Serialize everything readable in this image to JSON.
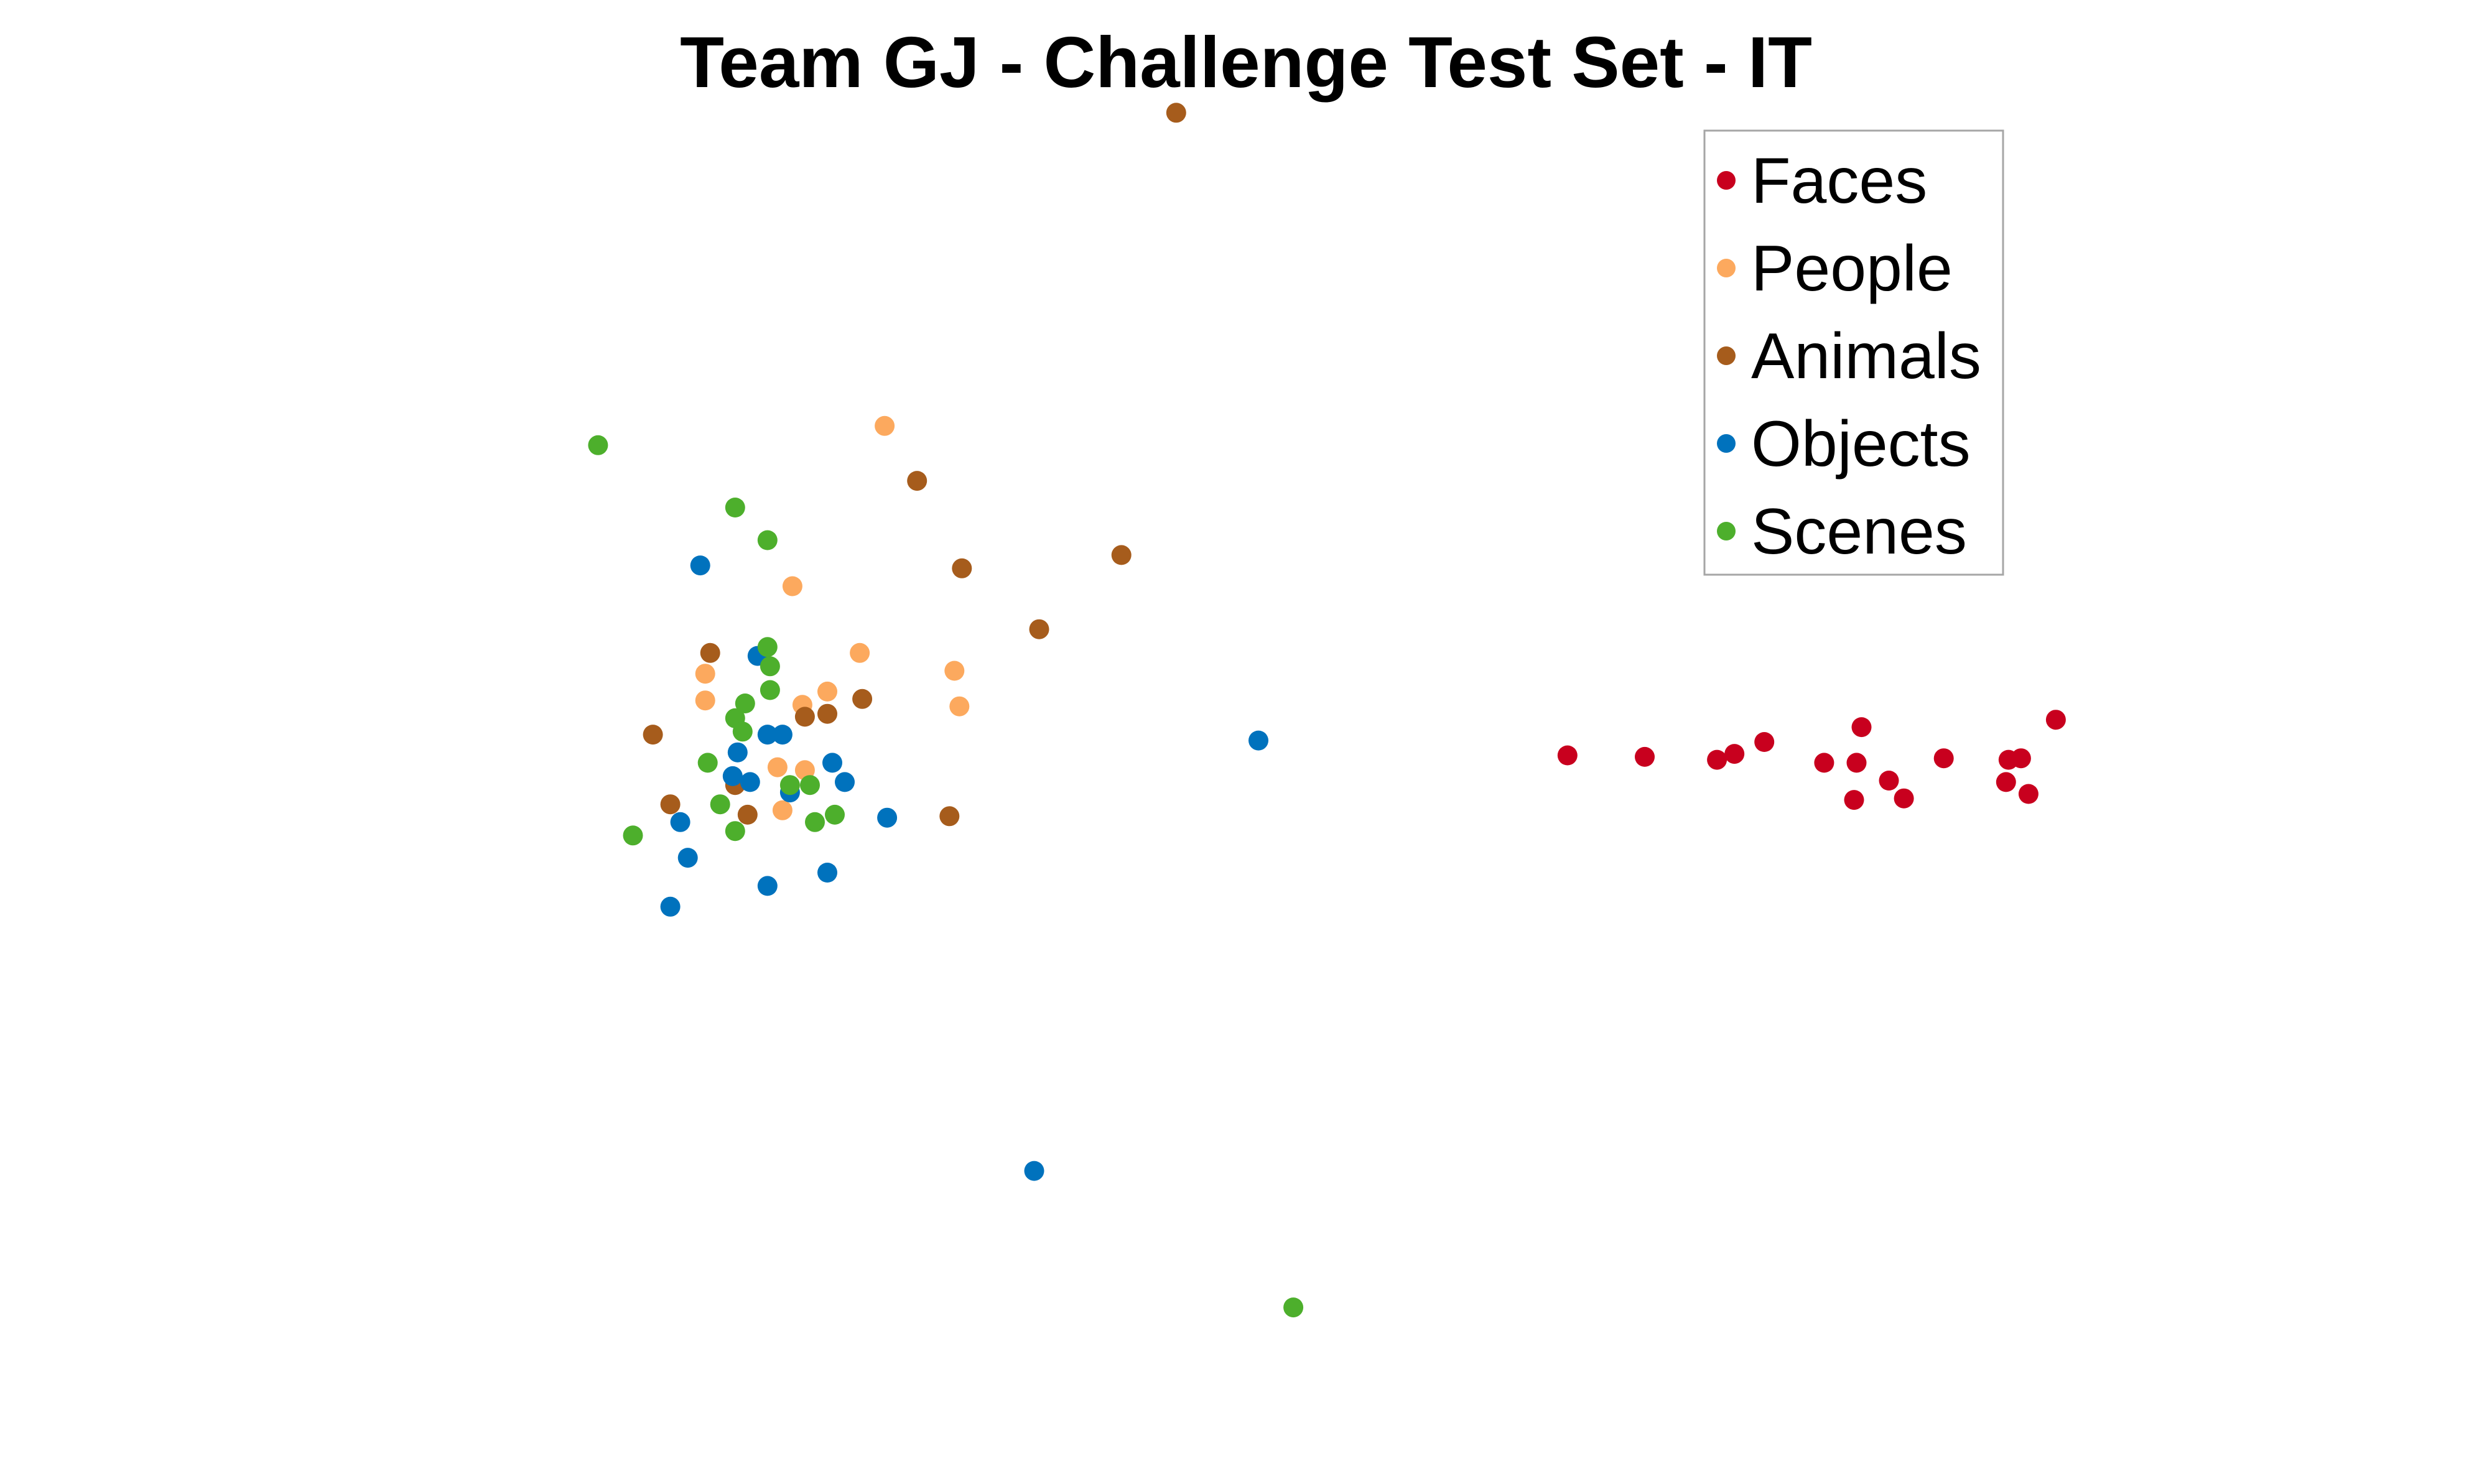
{
  "chart_data": {
    "type": "scatter",
    "title": "Team GJ  - Challenge Test Set - IT",
    "xlabel": "",
    "ylabel": "",
    "axes_visible": false,
    "grid": false,
    "xlim": [
      0,
      100
    ],
    "ylim": [
      0,
      100
    ],
    "legend": {
      "placement": "top-right",
      "boxed": true
    },
    "series": [
      {
        "name": "Faces",
        "color": "#C8001E",
        "points": [
          [
            82.5,
            51.5
          ],
          [
            81.4,
            46.5
          ],
          [
            78.0,
            48.9
          ],
          [
            74.7,
            51.0
          ],
          [
            74.5,
            48.6
          ],
          [
            73.2,
            48.6
          ],
          [
            74.4,
            46.1
          ],
          [
            75.8,
            47.4
          ],
          [
            76.4,
            46.2
          ],
          [
            80.5,
            47.3
          ],
          [
            81.1,
            48.9
          ],
          [
            80.6,
            48.8
          ],
          [
            70.8,
            50.0
          ],
          [
            69.6,
            49.2
          ],
          [
            68.9,
            48.8
          ],
          [
            66.0,
            49.0
          ],
          [
            62.9,
            49.1
          ]
        ]
      },
      {
        "name": "People",
        "color": "#FCA95E",
        "points": [
          [
            35.5,
            71.3
          ],
          [
            31.8,
            60.5
          ],
          [
            34.5,
            56.0
          ],
          [
            38.3,
            54.8
          ],
          [
            38.5,
            52.4
          ],
          [
            28.3,
            54.6
          ],
          [
            28.3,
            52.8
          ],
          [
            33.2,
            53.4
          ],
          [
            32.2,
            52.5
          ],
          [
            31.2,
            48.3
          ],
          [
            32.3,
            48.1
          ],
          [
            31.4,
            45.4
          ]
        ]
      },
      {
        "name": "Animals",
        "color": "#A65C1C",
        "points": [
          [
            47.2,
            92.4
          ],
          [
            36.8,
            67.6
          ],
          [
            38.6,
            61.7
          ],
          [
            45.0,
            62.6
          ],
          [
            41.7,
            57.6
          ],
          [
            28.5,
            56.0
          ],
          [
            34.6,
            52.9
          ],
          [
            33.2,
            51.9
          ],
          [
            32.3,
            51.7
          ],
          [
            26.2,
            50.5
          ],
          [
            29.5,
            47.1
          ],
          [
            26.9,
            45.8
          ],
          [
            30.0,
            45.1
          ],
          [
            38.1,
            45.0
          ]
        ]
      },
      {
        "name": "Objects",
        "color": "#0072BD",
        "points": [
          [
            28.1,
            61.9
          ],
          [
            30.4,
            55.8
          ],
          [
            30.8,
            50.5
          ],
          [
            31.4,
            50.5
          ],
          [
            29.6,
            49.3
          ],
          [
            33.4,
            48.6
          ],
          [
            29.4,
            47.7
          ],
          [
            30.1,
            47.3
          ],
          [
            33.9,
            47.3
          ],
          [
            31.7,
            46.6
          ],
          [
            35.6,
            44.9
          ],
          [
            27.3,
            44.6
          ],
          [
            27.6,
            42.2
          ],
          [
            33.2,
            41.2
          ],
          [
            30.8,
            40.3
          ],
          [
            26.9,
            38.9
          ],
          [
            50.5,
            50.1
          ],
          [
            41.5,
            21.1
          ]
        ]
      },
      {
        "name": "Scenes",
        "color": "#4DAF2C",
        "points": [
          [
            24.0,
            70.0
          ],
          [
            29.5,
            65.8
          ],
          [
            30.8,
            63.6
          ],
          [
            30.8,
            56.4
          ],
          [
            30.9,
            55.1
          ],
          [
            30.9,
            53.5
          ],
          [
            29.9,
            52.6
          ],
          [
            29.5,
            51.6
          ],
          [
            29.8,
            50.7
          ],
          [
            28.4,
            48.6
          ],
          [
            31.7,
            47.1
          ],
          [
            32.5,
            47.1
          ],
          [
            28.9,
            45.8
          ],
          [
            33.5,
            45.1
          ],
          [
            32.7,
            44.6
          ],
          [
            29.5,
            44.0
          ],
          [
            25.4,
            43.7
          ],
          [
            51.9,
            11.9
          ]
        ]
      }
    ]
  }
}
